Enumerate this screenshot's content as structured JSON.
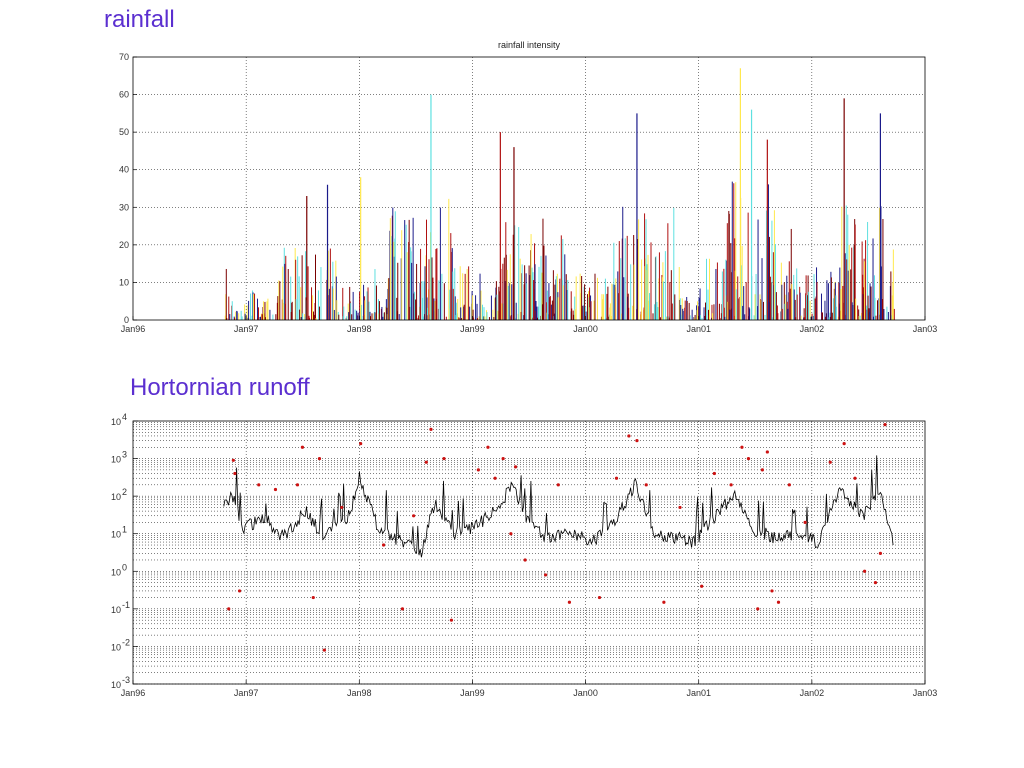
{
  "page": {
    "heading_rainfall": "rainfall",
    "heading_runoff": "Hortornian runoff"
  },
  "colors": {
    "heading": "#5b2fd0",
    "rain_series": [
      "#7a0000",
      "#1a1a8a",
      "#ffe84d",
      "#5ee0e0",
      "#b01010"
    ],
    "runoff_line": "#000000",
    "runoff_points": "#cc1111"
  },
  "chart_data": [
    {
      "type": "bar",
      "title": "rainfall intensity",
      "x_ticks": [
        "Jan96",
        "Jan97",
        "Jan98",
        "Jan99",
        "Jan00",
        "Jan01",
        "Jan02",
        "Jan03"
      ],
      "xlim": [
        "1996-01-01",
        "2003-01-01"
      ],
      "ylim": [
        0,
        70
      ],
      "y_ticks": [
        "0",
        "10",
        "20",
        "30",
        "40",
        "50",
        "60",
        "70"
      ],
      "grid": true,
      "notable_peaks": [
        {
          "date": "1997-07-15",
          "value": 33
        },
        {
          "date": "1997-09-20",
          "value": 36
        },
        {
          "date": "1998-01-05",
          "value": 38
        },
        {
          "date": "1998-08-20",
          "value": 60
        },
        {
          "date": "1999-04-01",
          "value": 50
        },
        {
          "date": "1999-05-15",
          "value": 46
        },
        {
          "date": "2000-06-15",
          "value": 55
        },
        {
          "date": "2001-05-15",
          "value": 67
        },
        {
          "date": "2001-06-20",
          "value": 56
        },
        {
          "date": "2001-08-10",
          "value": 48
        },
        {
          "date": "2002-04-15",
          "value": 59
        },
        {
          "date": "2002-08-10",
          "value": 55
        }
      ]
    },
    {
      "type": "line",
      "x_ticks": [
        "Jan96",
        "Jan97",
        "Jan98",
        "Jan99",
        "Jan00",
        "Jan01",
        "Jan02",
        "Jan03"
      ],
      "xlim": [
        "1996-01-01",
        "2003-01-01"
      ],
      "yscale": "log",
      "ylim": [
        0.001,
        10000
      ],
      "y_ticks": [
        {
          "base": "10",
          "exp": "-3"
        },
        {
          "base": "10",
          "exp": "-2"
        },
        {
          "base": "10",
          "exp": "-1"
        },
        {
          "base": "10",
          "exp": "0"
        },
        {
          "base": "10",
          "exp": "1"
        },
        {
          "base": "10",
          "exp": "2"
        },
        {
          "base": "10",
          "exp": "3"
        },
        {
          "base": "10",
          "exp": "4"
        }
      ],
      "grid": true,
      "line_series": {
        "x": [
          "1996-10-20",
          "1996-11-15",
          "1996-12-20",
          "1997-03-01",
          "1997-05-01",
          "1997-07-10",
          "1997-09-01",
          "1997-11-15",
          "1998-01-05",
          "1998-03-01",
          "1998-05-15",
          "1998-07-20",
          "1998-09-01",
          "1998-11-01",
          "1999-01-10",
          "1999-03-15",
          "1999-05-10",
          "1999-07-01",
          "1999-09-01",
          "1999-11-15",
          "2000-01-20",
          "2000-04-01",
          "2000-06-10",
          "2000-08-15",
          "2000-10-15",
          "2000-12-20",
          "2001-02-15",
          "2001-05-01",
          "2001-07-01",
          "2001-09-01",
          "2001-11-15",
          "2002-01-20",
          "2002-04-01",
          "2002-06-15",
          "2002-08-10",
          "2002-09-20"
        ],
        "y": [
          50,
          120,
          15,
          25,
          8,
          40,
          10,
          20,
          250,
          15,
          6,
          3,
          70,
          10,
          15,
          40,
          200,
          20,
          7,
          12,
          6,
          20,
          200,
          10,
          8,
          6,
          25,
          120,
          12,
          8,
          10,
          6,
          150,
          30,
          150,
          5
        ]
      },
      "scatter_series": {
        "x": [
          "1996-11-05",
          "1996-11-20",
          "1996-11-25",
          "1996-12-10",
          "1997-02-10",
          "1997-04-05",
          "1997-06-15",
          "1997-07-01",
          "1997-08-05",
          "1997-08-25",
          "1997-09-10",
          "1997-11-05",
          "1998-01-05",
          "1998-03-20",
          "1998-05-20",
          "1998-06-25",
          "1998-08-05",
          "1998-08-20",
          "1998-10-01",
          "1998-10-25",
          "1999-01-20",
          "1999-02-20",
          "1999-03-15",
          "1999-04-10",
          "1999-05-05",
          "1999-05-20",
          "1999-06-20",
          "1999-08-25",
          "1999-10-05",
          "1999-11-10",
          "2000-02-15",
          "2000-04-10",
          "2000-05-20",
          "2000-06-15",
          "2000-07-15",
          "2000-09-10",
          "2000-11-01",
          "2001-01-10",
          "2001-02-20",
          "2001-04-15",
          "2001-05-20",
          "2001-06-10",
          "2001-07-10",
          "2001-07-25",
          "2001-08-10",
          "2001-08-25",
          "2001-09-15",
          "2001-10-20",
          "2001-12-10",
          "2002-03-01",
          "2002-04-15",
          "2002-05-20",
          "2002-06-20",
          "2002-07-25",
          "2002-08-10",
          "2002-08-25"
        ],
        "y": [
          0.1,
          900,
          400,
          0.3,
          200,
          150,
          200,
          2000,
          0.2,
          1000,
          0.008,
          50,
          2500,
          5,
          0.1,
          30,
          800,
          6000,
          1000,
          0.05,
          500,
          2000,
          300,
          1000,
          10,
          600,
          2,
          0.8,
          200,
          0.15,
          0.2,
          300,
          4000,
          3000,
          200,
          0.15,
          50,
          0.4,
          400,
          200,
          2000,
          1000,
          0.1,
          500,
          1500,
          0.3,
          0.15,
          200,
          20,
          800,
          2500,
          300,
          1,
          0.5,
          3,
          8000
        ]
      }
    }
  ]
}
